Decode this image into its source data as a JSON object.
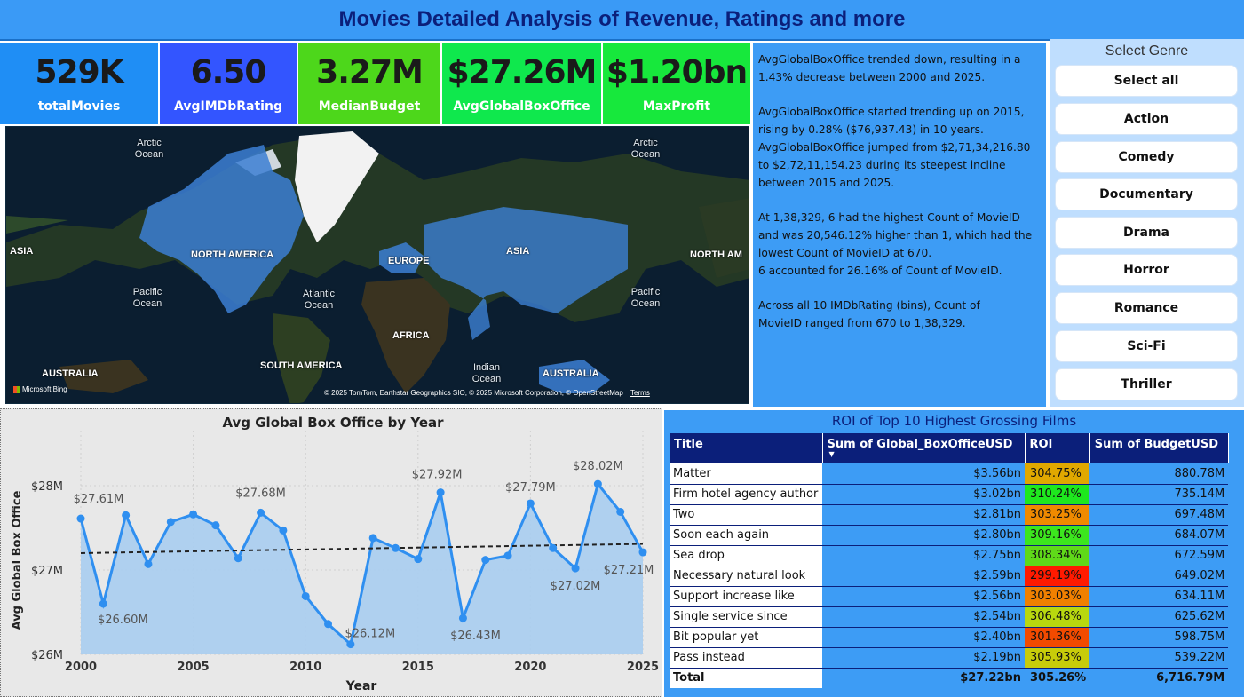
{
  "header": {
    "title": "Movies Detailed Analysis of Revenue, Ratings and more"
  },
  "kpis": [
    {
      "value": "529K",
      "label": "totalMovies",
      "color": "#1f8ef5"
    },
    {
      "value": "6.50",
      "label": "AvgIMDbRating",
      "color": "#3355ff"
    },
    {
      "value": "3.27M",
      "label": "MedianBudget",
      "color": "#4dd71b"
    },
    {
      "value": "$27.26M",
      "label": "AvgGlobalBoxOffice",
      "color": "#0fe84d"
    },
    {
      "value": "$1.20bn",
      "label": "MaxProfit",
      "color": "#17e83c"
    }
  ],
  "map": {
    "labels": {
      "arctic_left": "Arctic Ocean",
      "arctic_right": "Arctic Ocean",
      "asia_left": "ASIA",
      "north_america": "NORTH AMERICA",
      "europe": "EUROPE",
      "asia": "ASIA",
      "north_am_right": "NORTH AM",
      "pacific_left": "Pacific Ocean",
      "atlantic": "Atlantic Ocean",
      "pacific_right": "Pacific Ocean",
      "africa": "AFRICA",
      "australia_left": "AUSTRALIA",
      "south_america": "SOUTH AMERICA",
      "indian": "Indian Ocean",
      "australia_right": "AUSTRALIA"
    },
    "attribution": "© 2025 TomTom, Earthstar Geographics SIO, © 2025 Microsoft Corporation, © OpenStreetMap",
    "terms": "Terms",
    "brand": "Microsoft Bing"
  },
  "narrative": {
    "p1": [
      "AvgGlobalBoxOffice trended down, resulting in a",
      "1.43% decrease between 2000 and 2025."
    ],
    "p2": [
      "AvgGlobalBoxOffice started trending up on 2015,",
      "rising by 0.28% ($76,937.43) in 10 years.",
      "AvgGlobalBoxOffice jumped from $2,71,34,216.80",
      "to $2,72,11,154.23 during its steepest incline",
      "between 2015 and 2025."
    ],
    "p3": [
      "At 1,38,329, 6 had the highest Count of MovieID",
      "and was 20,546.12% higher than 1, which had the",
      "lowest Count of MovieID at 670.",
      "6 accounted for 26.16% of Count of MovieID."
    ],
    "p4": [
      "Across all 10 IMDbRating (bins), Count of",
      "MovieID ranged from 670 to 1,38,329."
    ]
  },
  "genre": {
    "title": "Select Genre",
    "options": [
      "Select all",
      "Action",
      "Comedy",
      "Documentary",
      "Drama",
      "Horror",
      "Romance",
      "Sci-Fi",
      "Thriller"
    ]
  },
  "line_chart": {
    "title": "Avg Global Box Office by Year",
    "xlabel": "Year",
    "ylabel": "Avg Global Box Office",
    "yticks": [
      "$28M",
      "$27M",
      "$26M"
    ],
    "xticks": [
      "2000",
      "2005",
      "2010",
      "2015",
      "2020",
      "2025"
    ],
    "line_color": "#2f8ff0",
    "area_color": "#a9cdef"
  },
  "chart_data": {
    "type": "line",
    "title": "Avg Global Box Office by Year",
    "xlabel": "Year",
    "ylabel": "Avg Global Box Office",
    "ylim": [
      26.0,
      28.2
    ],
    "x": [
      2000,
      2001,
      2002,
      2003,
      2004,
      2005,
      2006,
      2007,
      2008,
      2009,
      2010,
      2011,
      2012,
      2013,
      2014,
      2015,
      2016,
      2017,
      2018,
      2019,
      2020,
      2021,
      2022,
      2023,
      2024,
      2025
    ],
    "series": [
      {
        "values": [
          27.61,
          26.6,
          27.65,
          27.07,
          27.57,
          27.66,
          27.53,
          27.14,
          27.68,
          27.47,
          26.69,
          26.36,
          26.12,
          27.38,
          27.26,
          27.13,
          27.92,
          26.43,
          27.12,
          27.17,
          27.79,
          27.26,
          27.02,
          28.02,
          27.69,
          27.21
        ]
      }
    ],
    "trend": [
      27.2,
      27.31
    ],
    "data_labels": [
      {
        "x": 2000,
        "text": "$27.61M"
      },
      {
        "x": 2001,
        "text": "$26.60M"
      },
      {
        "x": 2008,
        "text": "$27.68M"
      },
      {
        "x": 2012,
        "text": "$26.12M"
      },
      {
        "x": 2016,
        "text": "$27.92M"
      },
      {
        "x": 2017,
        "text": "$26.43M"
      },
      {
        "x": 2020,
        "text": "$27.79M"
      },
      {
        "x": 2022,
        "text": "$27.02M"
      },
      {
        "x": 2023,
        "text": "$28.02M"
      },
      {
        "x": 2025,
        "text": "$27.21M"
      }
    ]
  },
  "roi_table": {
    "title": "ROI of Top 10 Highest Grossing Films",
    "columns": [
      "Title",
      "Sum of Global_BoxOfficeUSD",
      "ROI",
      "Sum of BudgetUSD"
    ],
    "rows": [
      {
        "title": "Matter",
        "box": "$3.56bn",
        "roi": "304.75%",
        "budget": "880.78M",
        "roi_color": "#e0a800"
      },
      {
        "title": "Firm hotel agency author",
        "box": "$3.02bn",
        "roi": "310.24%",
        "budget": "735.14M",
        "roi_color": "#1ee81e"
      },
      {
        "title": "Two",
        "box": "$2.81bn",
        "roi": "303.25%",
        "budget": "697.48M",
        "roi_color": "#ef8a00"
      },
      {
        "title": "Soon each again",
        "box": "$2.80bn",
        "roi": "309.16%",
        "budget": "684.07M",
        "roi_color": "#3ce61e"
      },
      {
        "title": "Sea drop",
        "box": "$2.75bn",
        "roi": "308.34%",
        "budget": "672.59M",
        "roi_color": "#5fd919"
      },
      {
        "title": "Necessary natural look",
        "box": "$2.59bn",
        "roi": "299.19%",
        "budget": "649.02M",
        "roi_color": "#ff1a00"
      },
      {
        "title": "Support increase like",
        "box": "$2.56bn",
        "roi": "303.03%",
        "budget": "634.11M",
        "roi_color": "#f08000"
      },
      {
        "title": "Single service since",
        "box": "$2.54bn",
        "roi": "306.48%",
        "budget": "625.62M",
        "roi_color": "#b8d80f"
      },
      {
        "title": "Bit popular yet",
        "box": "$2.40bn",
        "roi": "301.36%",
        "budget": "598.75M",
        "roi_color": "#f24a00"
      },
      {
        "title": "Pass instead",
        "box": "$2.19bn",
        "roi": "305.93%",
        "budget": "539.22M",
        "roi_color": "#c8cc0a"
      }
    ],
    "total": {
      "label": "Total",
      "box": "$27.22bn",
      "roi": "305.26%",
      "budget": "6,716.79M"
    }
  }
}
